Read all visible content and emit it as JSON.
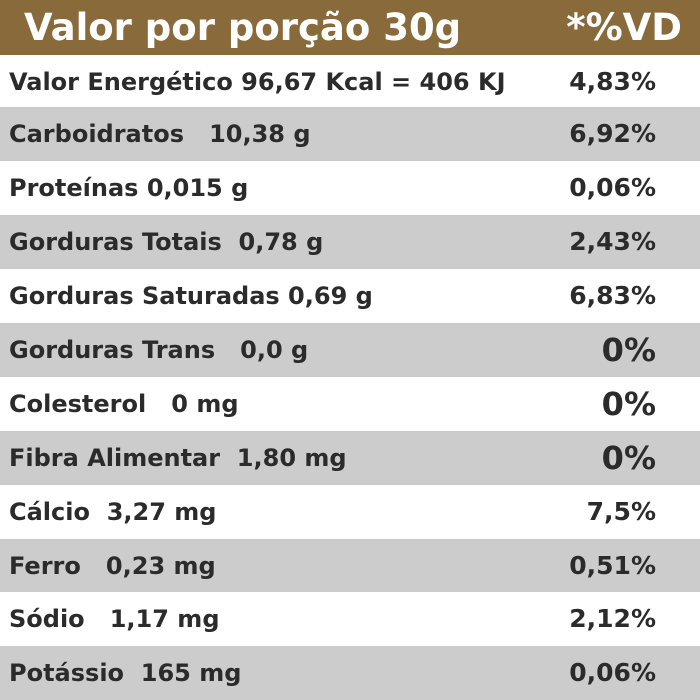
{
  "header": {
    "title": "Valor por porção 30g",
    "vd_label": "*%VD"
  },
  "rows": [
    {
      "label": "Valor Energético 96,67 Kcal = 406 KJ",
      "vd": "4,83%"
    },
    {
      "label": "Carboidratos   10,38 g",
      "vd": "6,92%"
    },
    {
      "label": "Proteínas 0,015 g",
      "vd": "0,06%"
    },
    {
      "label": "Gorduras Totais  0,78 g",
      "vd": "2,43%"
    },
    {
      "label": "Gorduras Saturadas 0,69 g",
      "vd": "6,83%"
    },
    {
      "label": "Gorduras Trans   0,0 g",
      "vd": "0%"
    },
    {
      "label": "Colesterol   0 mg",
      "vd": "0%"
    },
    {
      "label": "Fibra Alimentar  1,80 mg",
      "vd": "0%"
    },
    {
      "label": "Cálcio  3,27 mg",
      "vd": "7,5%"
    },
    {
      "label": "Ferro   0,23 mg",
      "vd": "0,51%"
    },
    {
      "label": "Sódio   1,17 mg",
      "vd": "2,12%"
    },
    {
      "label": "Potássio  165 mg",
      "vd": "0,06%"
    }
  ]
}
